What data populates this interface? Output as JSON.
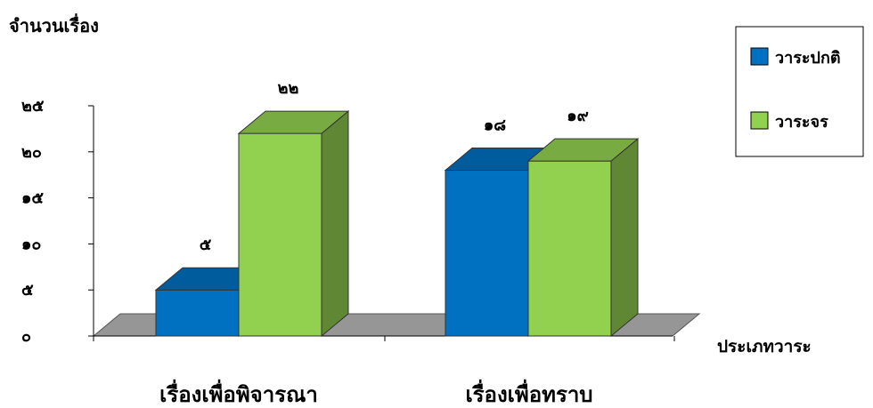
{
  "chart_data": {
    "type": "bar",
    "ylabel": "จำนวนเรื่อง",
    "xlabel": "ประเภทวาระ",
    "categories": [
      "เรื่องเพื่อพิจารณา",
      "เรื่องเพื่อทราบ"
    ],
    "series": [
      {
        "name": "วาระปกติ",
        "values": [
          5,
          18
        ],
        "value_labels": [
          "๕",
          "๑๘"
        ],
        "color": "#0070C0"
      },
      {
        "name": "วาระจร",
        "values": [
          22,
          19
        ],
        "value_labels": [
          "๒๒",
          "๑๙"
        ],
        "color": "#92D050"
      }
    ],
    "yticks": [
      0,
      5,
      10,
      15,
      20,
      25
    ],
    "ytick_labels": [
      "๐",
      "๕",
      "๑๐",
      "๑๕",
      "๒๐",
      "๒๕"
    ],
    "ylim": [
      0,
      25
    ],
    "legend_position": "top-right",
    "style": "3d-clustered-column"
  }
}
